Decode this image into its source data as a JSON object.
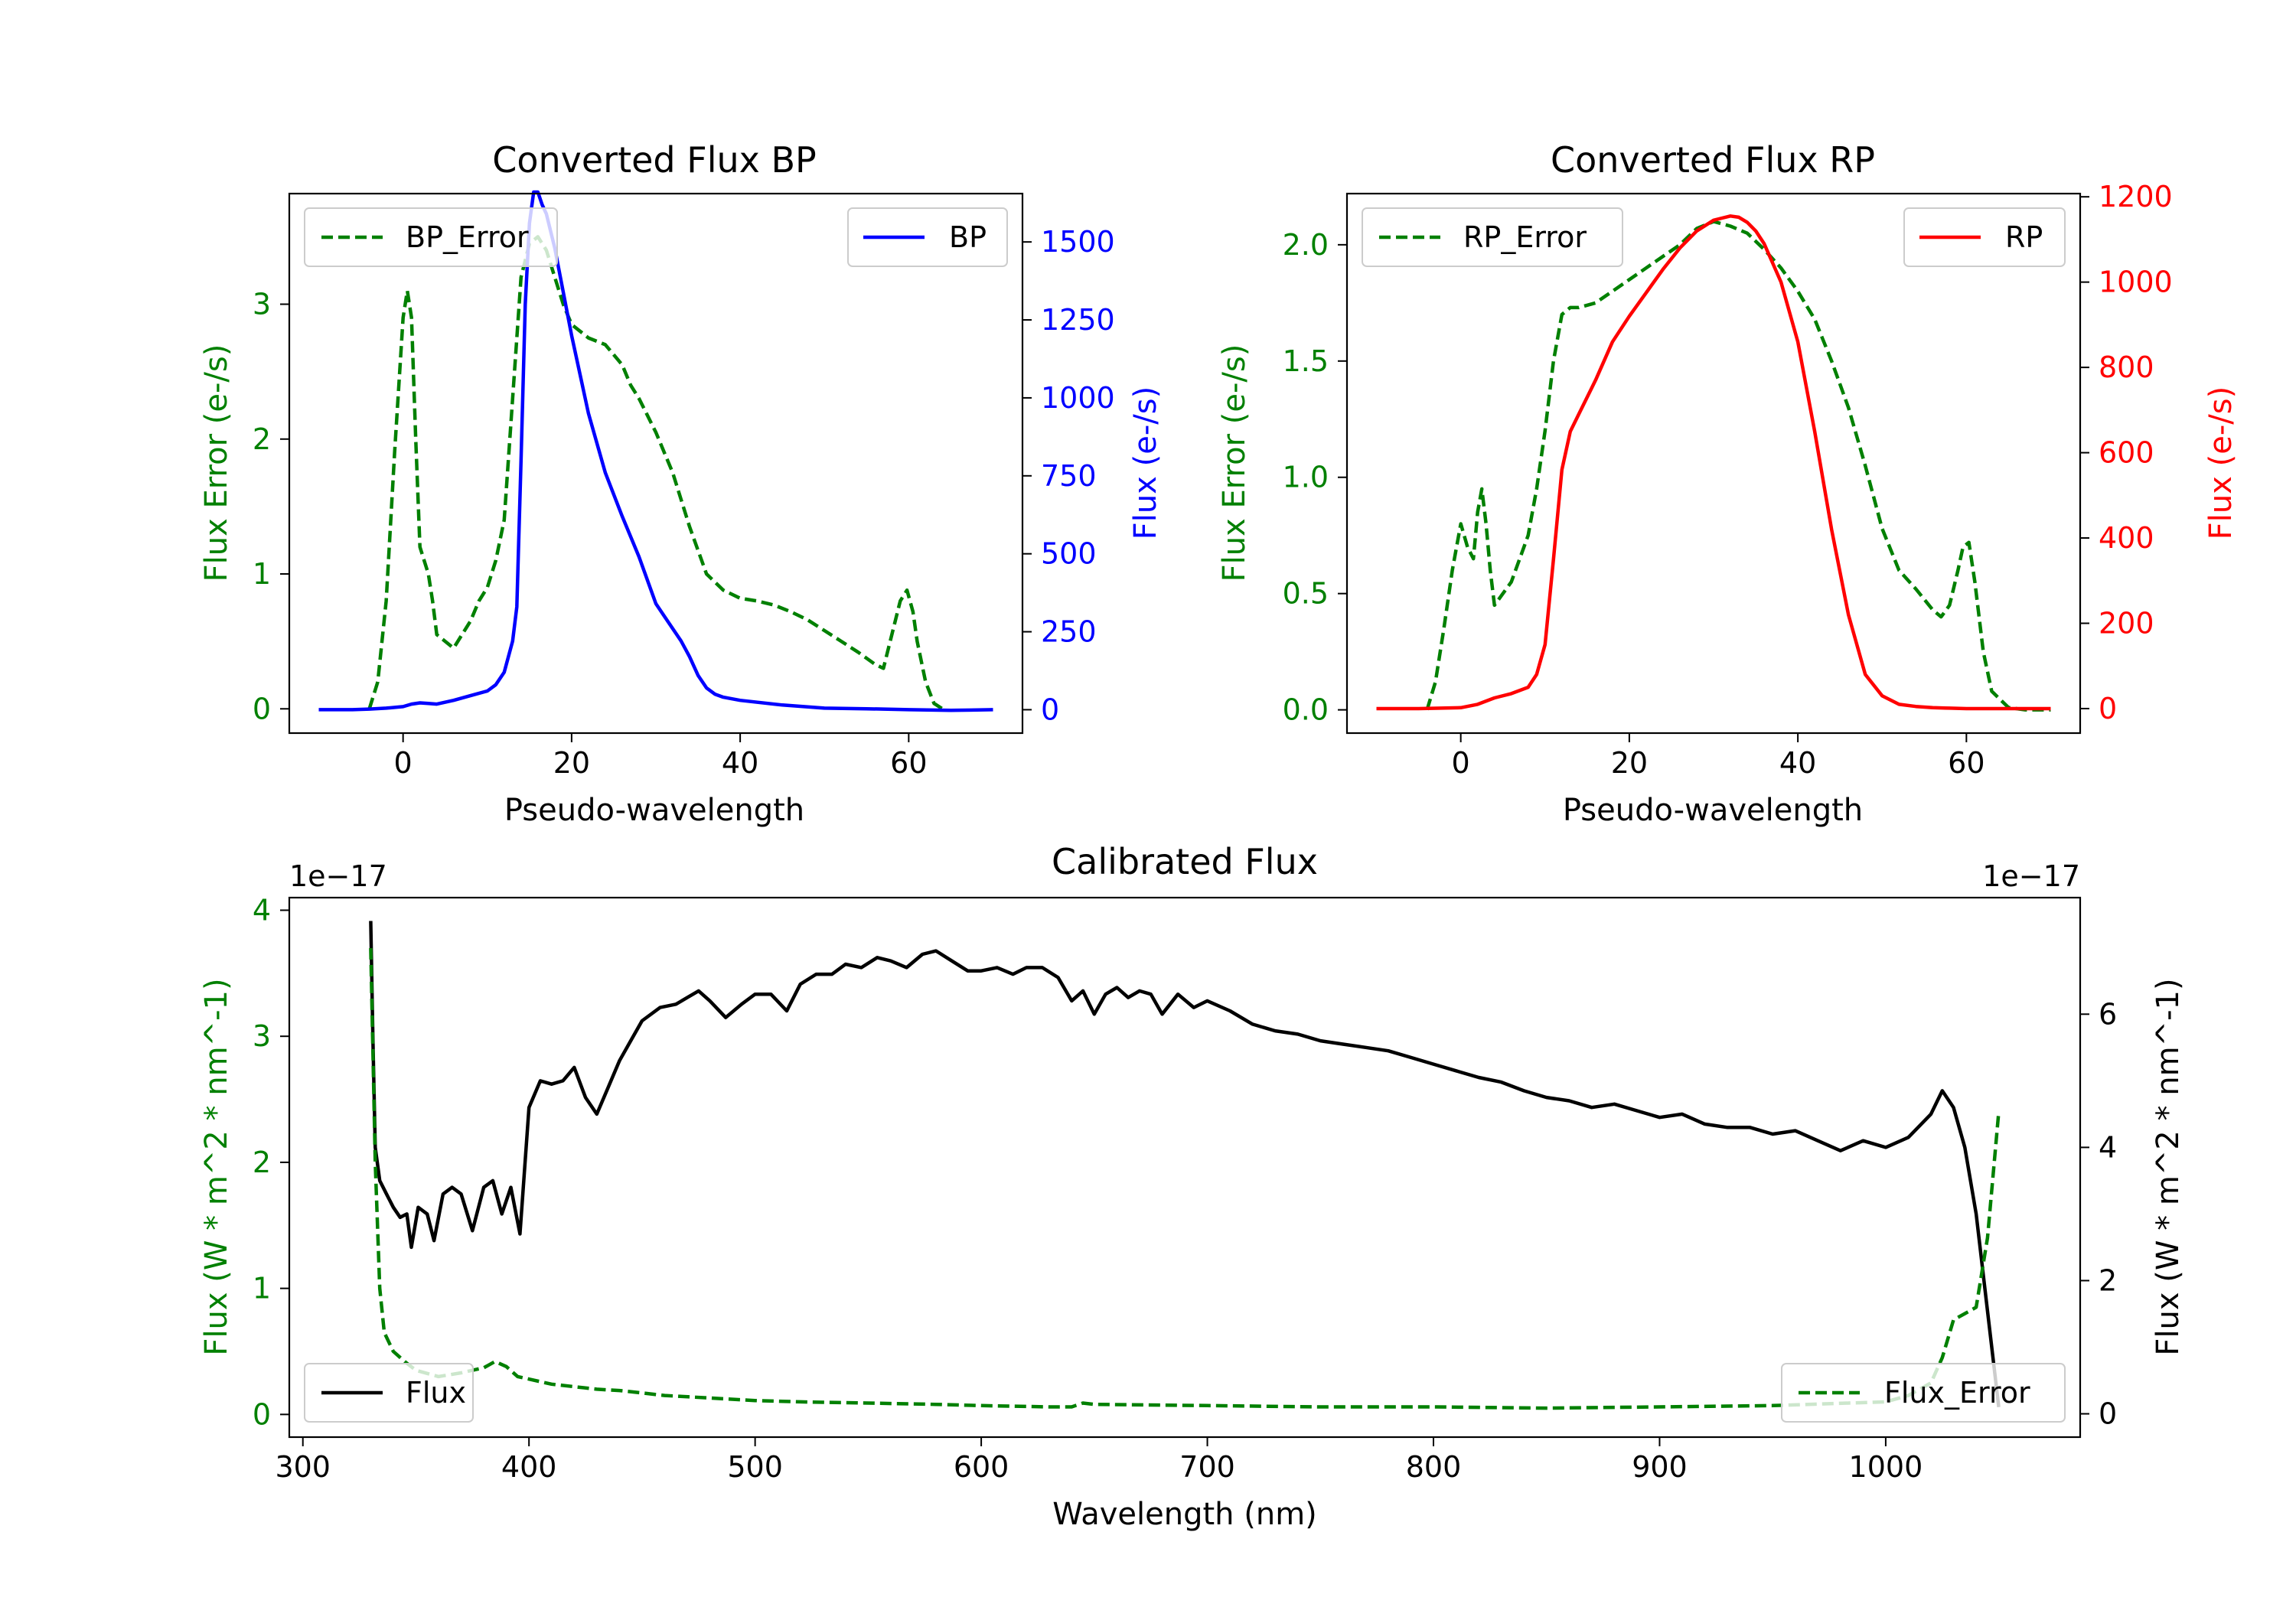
{
  "colors": {
    "error": "#008000",
    "bp": "#0000ff",
    "rp": "#ff0000",
    "flux": "#000000"
  },
  "chart_data": [
    {
      "id": "bp",
      "type": "line",
      "title": "Converted Flux BP",
      "xlabel": "Pseudo-wavelength",
      "ylabel_left": "Flux Error (e-/s)",
      "ylabel_right": "Flux (e-/s)",
      "xlim": [
        -13.5,
        73.5
      ],
      "xticks": [
        0,
        20,
        40,
        60
      ],
      "ylim_left": [
        -0.18,
        3.82
      ],
      "yticks_left": [
        0,
        1,
        2,
        3
      ],
      "ylim_right": [
        -75,
        1655
      ],
      "yticks_right": [
        0,
        250,
        500,
        750,
        1000,
        1250,
        1500
      ],
      "legend_left": {
        "label": "BP_Error",
        "placement": "upper left"
      },
      "legend_right": {
        "label": "BP",
        "placement": "upper right"
      },
      "series": [
        {
          "name": "BP_Error",
          "axis": "left",
          "style": "dashed",
          "color": "#008000",
          "x": [
            -4,
            -3,
            -2,
            -1,
            0,
            0.5,
            1,
            1.5,
            2,
            2.5,
            3,
            3.5,
            4,
            5,
            6,
            7,
            8,
            9,
            10,
            11,
            12,
            13,
            14,
            15,
            16,
            17,
            18,
            19,
            20,
            22,
            24,
            26,
            27,
            28,
            30,
            32,
            34,
            36,
            38,
            40,
            42,
            44,
            46,
            48,
            50,
            52,
            54,
            56,
            57,
            58,
            59,
            59.8,
            60.5,
            61,
            62,
            63,
            64
          ],
          "y": [
            0,
            0.2,
            0.8,
            1.9,
            2.9,
            3.1,
            2.9,
            2.0,
            1.2,
            1.1,
            1.0,
            0.8,
            0.55,
            0.5,
            0.45,
            0.55,
            0.65,
            0.8,
            0.9,
            1.1,
            1.4,
            2.3,
            3.2,
            3.45,
            3.5,
            3.4,
            3.2,
            3.0,
            2.85,
            2.75,
            2.7,
            2.55,
            2.4,
            2.3,
            2.05,
            1.75,
            1.35,
            1.0,
            0.88,
            0.82,
            0.8,
            0.77,
            0.72,
            0.66,
            0.58,
            0.5,
            0.42,
            0.33,
            0.3,
            0.55,
            0.8,
            0.88,
            0.72,
            0.5,
            0.2,
            0.04,
            0
          ]
        },
        {
          "name": "BP",
          "axis": "right",
          "style": "solid",
          "color": "#0000ff",
          "x": [
            -10,
            -6,
            -4,
            -2,
            0,
            1,
            2,
            3,
            4,
            6,
            8,
            10,
            11,
            12,
            13,
            13.5,
            14,
            14.5,
            15,
            15.5,
            16,
            16.5,
            17,
            18,
            19,
            20,
            22,
            24,
            26,
            28,
            30,
            31,
            32,
            33,
            34,
            35,
            36,
            37,
            38,
            40,
            45,
            50,
            55,
            60,
            65,
            70
          ],
          "y": [
            0,
            0,
            2,
            5,
            10,
            18,
            22,
            20,
            18,
            30,
            45,
            60,
            80,
            120,
            220,
            330,
            800,
            1300,
            1560,
            1660,
            1660,
            1620,
            1590,
            1480,
            1340,
            1200,
            950,
            760,
            620,
            490,
            340,
            300,
            260,
            220,
            170,
            110,
            70,
            50,
            40,
            30,
            15,
            5,
            3,
            0,
            -2,
            0
          ]
        }
      ]
    },
    {
      "id": "rp",
      "type": "line",
      "title": "Converted Flux RP",
      "xlabel": "Pseudo-wavelength",
      "ylabel_left": "Flux Error (e-/s)",
      "ylabel_right": "Flux (e-/s)",
      "xlim": [
        -13.5,
        73.5
      ],
      "xticks": [
        0,
        20,
        40,
        60
      ],
      "ylim_left": [
        -0.1,
        2.22
      ],
      "yticks_left": [
        0.0,
        0.5,
        1.0,
        1.5,
        2.0
      ],
      "ylim_right": [
        -57.5,
        1207.5
      ],
      "yticks_right": [
        0,
        200,
        400,
        600,
        800,
        1000,
        1200
      ],
      "legend_left": {
        "label": "RP_Error",
        "placement": "upper left"
      },
      "legend_right": {
        "label": "RP",
        "placement": "upper right"
      },
      "series": [
        {
          "name": "RP_Error",
          "axis": "left",
          "style": "dashed",
          "color": "#008000",
          "x": [
            -4,
            -3,
            -2,
            -1,
            0,
            0.8,
            1.5,
            2,
            2.5,
            3,
            3.5,
            4,
            5,
            6,
            7,
            8,
            9,
            10,
            11,
            12,
            13,
            14,
            16,
            18,
            20,
            22,
            24,
            26,
            28,
            30,
            32,
            34,
            36,
            38,
            40,
            42,
            44,
            46,
            48,
            50,
            52,
            54,
            56,
            57,
            58,
            59,
            59.6,
            60.3,
            61,
            62,
            63,
            65,
            67,
            70
          ],
          "y": [
            0,
            0.12,
            0.35,
            0.6,
            0.8,
            0.7,
            0.65,
            0.85,
            0.95,
            0.8,
            0.6,
            0.45,
            0.5,
            0.55,
            0.65,
            0.75,
            0.95,
            1.2,
            1.5,
            1.7,
            1.73,
            1.73,
            1.75,
            1.8,
            1.85,
            1.9,
            1.95,
            2.0,
            2.07,
            2.1,
            2.08,
            2.05,
            1.98,
            1.9,
            1.8,
            1.68,
            1.5,
            1.3,
            1.05,
            0.78,
            0.6,
            0.52,
            0.43,
            0.4,
            0.45,
            0.6,
            0.7,
            0.72,
            0.55,
            0.25,
            0.08,
            0.01,
            0,
            0
          ]
        },
        {
          "name": "RP",
          "axis": "right",
          "style": "solid",
          "color": "#ff0000",
          "x": [
            -10,
            -5,
            0,
            2,
            4,
            6,
            8,
            9,
            10,
            11,
            12,
            13,
            14,
            16,
            18,
            20,
            22,
            24,
            26,
            28,
            30,
            31,
            32,
            33,
            34,
            35,
            36,
            38,
            40,
            42,
            44,
            46,
            48,
            50,
            52,
            54,
            56,
            58,
            60,
            62,
            65,
            70
          ],
          "y": [
            0,
            0,
            2,
            10,
            25,
            35,
            50,
            80,
            150,
            350,
            560,
            650,
            690,
            770,
            860,
            920,
            975,
            1030,
            1080,
            1120,
            1145,
            1150,
            1155,
            1152,
            1140,
            1120,
            1090,
            1000,
            860,
            650,
            420,
            220,
            80,
            30,
            10,
            5,
            2,
            1,
            0,
            0,
            0,
            0
          ]
        }
      ]
    },
    {
      "id": "calibrated",
      "type": "line",
      "title": "Calibrated Flux",
      "xlabel": "Wavelength (nm)",
      "ylabel_left": "Flux (W * m^2 * nm^-1)",
      "ylabel_right": "Flux (W * m^2 * nm^-1)",
      "offset_left": "1e−17",
      "offset_right": "1e−17",
      "xlim": [
        294,
        1086
      ],
      "xticks": [
        300,
        400,
        500,
        600,
        700,
        800,
        900,
        1000
      ],
      "ylim_left": [
        -0.18,
        4.1
      ],
      "yticks_left": [
        0,
        1,
        2,
        3,
        4
      ],
      "ylim_right": [
        -0.35,
        7.75
      ],
      "yticks_right": [
        0,
        2,
        4,
        6
      ],
      "legend_left": {
        "label": "Flux",
        "placement": "lower left"
      },
      "legend_right": {
        "label": "Flux_Error",
        "placement": "lower right"
      },
      "series": [
        {
          "name": "Flux",
          "axis": "right",
          "style": "solid",
          "color": "#000000",
          "x": [
            330,
            331,
            332,
            334,
            337,
            340,
            343,
            346,
            348,
            351,
            355,
            358,
            362,
            366,
            370,
            375,
            380,
            384,
            388,
            392,
            396,
            400,
            405,
            410,
            415,
            420,
            425,
            430,
            435,
            440,
            445,
            450,
            458,
            465,
            470,
            475,
            480,
            487,
            494,
            500,
            507,
            514,
            520,
            527,
            534,
            540,
            547,
            554,
            560,
            567,
            574,
            580,
            587,
            594,
            600,
            607,
            614,
            620,
            627,
            634,
            640,
            645,
            650,
            655,
            660,
            665,
            670,
            675,
            680,
            687,
            694,
            700,
            710,
            720,
            730,
            740,
            750,
            760,
            770,
            780,
            790,
            800,
            810,
            820,
            830,
            840,
            850,
            860,
            870,
            880,
            890,
            900,
            910,
            920,
            930,
            940,
            950,
            960,
            970,
            980,
            990,
            1000,
            1010,
            1020,
            1025,
            1030,
            1035,
            1040,
            1050
          ],
          "y": [
            7.4,
            5.6,
            4.0,
            3.5,
            3.3,
            3.1,
            2.95,
            3.0,
            2.5,
            3.1,
            3.0,
            2.6,
            3.3,
            3.4,
            3.3,
            2.75,
            3.4,
            3.5,
            3.0,
            3.4,
            2.7,
            4.6,
            5.0,
            4.95,
            5.0,
            5.2,
            4.75,
            4.5,
            4.9,
            5.3,
            5.6,
            5.9,
            6.1,
            6.15,
            6.25,
            6.35,
            6.2,
            5.95,
            6.15,
            6.3,
            6.3,
            6.05,
            6.45,
            6.6,
            6.6,
            6.75,
            6.7,
            6.85,
            6.8,
            6.7,
            6.9,
            6.95,
            6.8,
            6.65,
            6.65,
            6.7,
            6.6,
            6.7,
            6.7,
            6.55,
            6.2,
            6.35,
            6.0,
            6.3,
            6.4,
            6.25,
            6.35,
            6.3,
            6.0,
            6.3,
            6.1,
            6.2,
            6.05,
            5.85,
            5.75,
            5.7,
            5.6,
            5.55,
            5.5,
            5.45,
            5.35,
            5.25,
            5.15,
            5.05,
            4.98,
            4.85,
            4.75,
            4.7,
            4.6,
            4.65,
            4.55,
            4.45,
            4.5,
            4.35,
            4.3,
            4.3,
            4.2,
            4.25,
            4.1,
            3.95,
            4.1,
            4.0,
            4.15,
            4.5,
            4.85,
            4.6,
            4.0,
            3.0,
            0.1
          ]
        },
        {
          "name": "Flux_Error",
          "axis": "left",
          "style": "dashed",
          "color": "#008000",
          "x": [
            330,
            332,
            334,
            336,
            340,
            345,
            350,
            360,
            370,
            380,
            385,
            390,
            395,
            400,
            410,
            420,
            430,
            440,
            450,
            460,
            480,
            500,
            520,
            550,
            580,
            600,
            630,
            640,
            645,
            650,
            700,
            750,
            800,
            850,
            900,
            950,
            1000,
            1010,
            1020,
            1025,
            1030,
            1035,
            1040,
            1045,
            1050
          ],
          "y": [
            3.7,
            2.0,
            1.0,
            0.65,
            0.5,
            0.42,
            0.35,
            0.3,
            0.33,
            0.37,
            0.42,
            0.38,
            0.3,
            0.28,
            0.24,
            0.22,
            0.2,
            0.19,
            0.17,
            0.15,
            0.13,
            0.11,
            0.1,
            0.09,
            0.08,
            0.07,
            0.06,
            0.06,
            0.09,
            0.08,
            0.07,
            0.06,
            0.06,
            0.05,
            0.06,
            0.07,
            0.1,
            0.15,
            0.25,
            0.45,
            0.75,
            0.8,
            0.85,
            1.4,
            2.4
          ]
        }
      ]
    }
  ]
}
